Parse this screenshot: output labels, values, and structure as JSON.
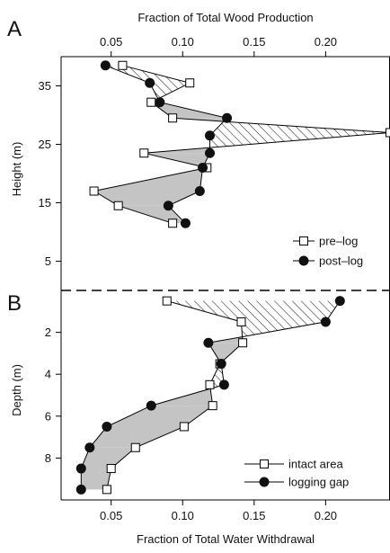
{
  "chart_data": [
    {
      "type": "line",
      "panel_label": "A",
      "xlabel": "Fraction of Total Wood Production",
      "xaxis_position": "top",
      "ylabel": "Height (m)",
      "xlim": [
        0.015,
        0.245
      ],
      "ylim": [
        0,
        40
      ],
      "xticks": [
        0.05,
        0.1,
        0.15,
        0.2
      ],
      "xtick_labels": [
        "0.05",
        "0.10",
        "0.15",
        "0.20"
      ],
      "yticks": [
        5,
        15,
        25,
        35
      ],
      "ytick_labels": [
        "5",
        "15",
        "25",
        "35"
      ],
      "legend": {
        "position": "lower-right",
        "entries": [
          "pre–log",
          "post–log"
        ]
      },
      "fill_between_series": {
        "where_series2_greater": "solid gray",
        "where_series1_greater": "diagonal hatch"
      },
      "grid": false,
      "series": [
        {
          "name": "pre–log",
          "marker": "open-square",
          "x": [
            0.058,
            0.105,
            0.078,
            0.093,
            0.245,
            0.073,
            0.117,
            0.038,
            0.055,
            0.093
          ],
          "y": [
            38.5,
            35.5,
            32.2,
            29.5,
            27.0,
            23.5,
            21.0,
            17.0,
            14.5,
            11.5
          ]
        },
        {
          "name": "post–log",
          "marker": "filled-circle",
          "x": [
            0.046,
            0.077,
            0.084,
            0.131,
            0.119,
            0.119,
            0.114,
            0.112,
            0.09,
            0.102
          ],
          "y": [
            38.5,
            35.5,
            32.2,
            29.5,
            26.5,
            23.5,
            21.0,
            17.0,
            14.5,
            11.5
          ]
        }
      ]
    },
    {
      "type": "line",
      "panel_label": "B",
      "xlabel": "Fraction of Total Water Withdrawal",
      "xaxis_position": "bottom",
      "ylabel": "Depth (m)",
      "xlim": [
        0.015,
        0.245
      ],
      "ylim": [
        10,
        0
      ],
      "y_inverted": true,
      "xticks": [
        0.05,
        0.1,
        0.15,
        0.2
      ],
      "xtick_labels": [
        "0.05",
        "0.10",
        "0.15",
        "0.20"
      ],
      "yticks": [
        2,
        4,
        6,
        8
      ],
      "ytick_labels": [
        "2",
        "4",
        "6",
        "8"
      ],
      "legend": {
        "position": "lower-right",
        "entries": [
          "intact area",
          "logging gap"
        ]
      },
      "fill_between_series": {
        "where_series2_greater": "diagonal hatch",
        "where_series1_greater": "solid gray"
      },
      "grid": false,
      "series": [
        {
          "name": "intact area",
          "marker": "open-square",
          "x": [
            0.089,
            0.141,
            0.142,
            0.126,
            0.119,
            0.121,
            0.101,
            0.067,
            0.05,
            0.047
          ],
          "y": [
            0.5,
            1.5,
            2.5,
            3.5,
            4.5,
            5.5,
            6.5,
            7.5,
            8.5,
            9.5
          ]
        },
        {
          "name": "logging gap",
          "marker": "filled-circle",
          "x": [
            0.21,
            0.2,
            0.118,
            0.127,
            0.129,
            0.078,
            0.047,
            0.035,
            0.029,
            0.029
          ],
          "y": [
            0.5,
            1.5,
            2.5,
            3.5,
            4.5,
            5.5,
            6.5,
            7.5,
            8.5,
            9.5
          ]
        }
      ]
    }
  ]
}
